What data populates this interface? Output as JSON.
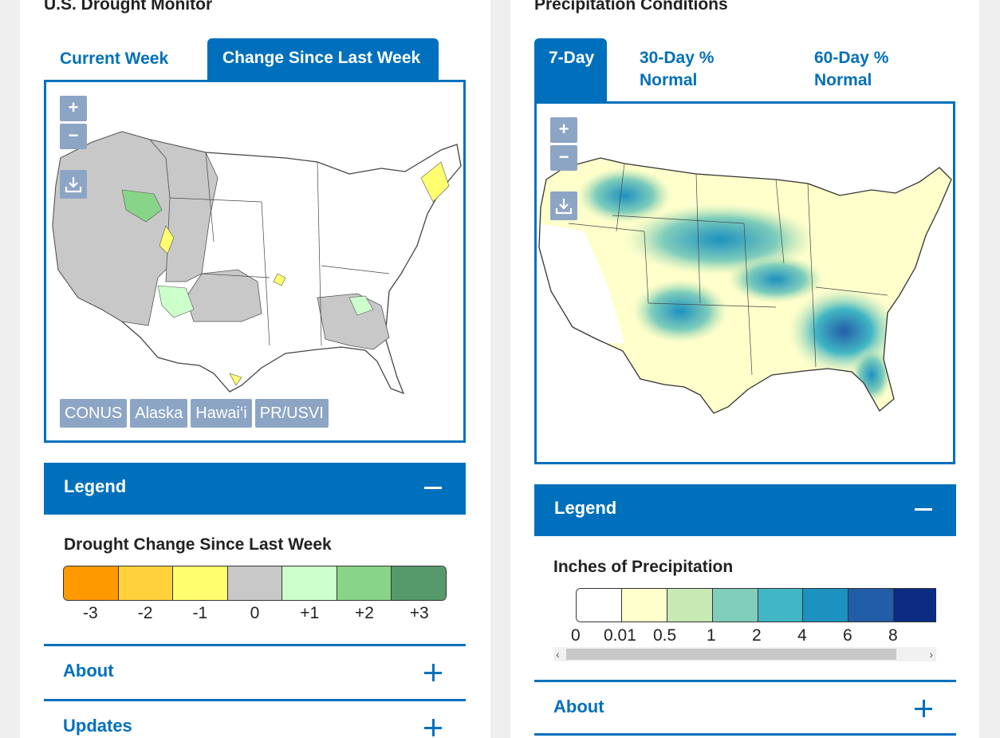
{
  "drought": {
    "title": "U.S. Drought Monitor",
    "tabs": [
      {
        "label": "Current Week",
        "active": false
      },
      {
        "label": "Change Since Last Week",
        "active": true
      }
    ],
    "map": {
      "zoom_in": "+",
      "zoom_out": "−",
      "download_icon": "download-icon",
      "regions": [
        "CONUS",
        "Alaska",
        "Hawai‘i",
        "PR/USVI"
      ]
    },
    "legend": {
      "heading": "Legend",
      "title": "Drought Change Since Last Week",
      "items": [
        {
          "label": "-3",
          "color": "#ff9900"
        },
        {
          "label": "-2",
          "color": "#ffd23b"
        },
        {
          "label": "-1",
          "color": "#ffff70"
        },
        {
          "label": "0",
          "color": "#c8c8c8"
        },
        {
          "label": "+1",
          "color": "#ccffcc"
        },
        {
          "label": "+2",
          "color": "#88d488"
        },
        {
          "label": "+3",
          "color": "#56996a"
        }
      ]
    },
    "sections": [
      "About",
      "Updates"
    ]
  },
  "precip": {
    "title": "Precipitation Conditions",
    "tabs": [
      {
        "label": "7-Day",
        "active": true
      },
      {
        "label": "30-Day % Normal",
        "active": false
      },
      {
        "label": "60-Day % Normal",
        "active": false
      }
    ],
    "map": {
      "zoom_in": "+",
      "zoom_out": "−",
      "download_icon": "download-icon"
    },
    "legend": {
      "heading": "Legend",
      "title": "Inches of Precipitation",
      "colors": [
        "#ffffff",
        "#ffffcc",
        "#c7e9b4",
        "#7fcdbb",
        "#41b6c4",
        "#1d91c0",
        "#225ea8",
        "#0c2c84"
      ],
      "labels": [
        "0",
        "0.01",
        "0.5",
        "1",
        "2",
        "4",
        "6",
        "8"
      ]
    },
    "sections": [
      "About"
    ]
  }
}
